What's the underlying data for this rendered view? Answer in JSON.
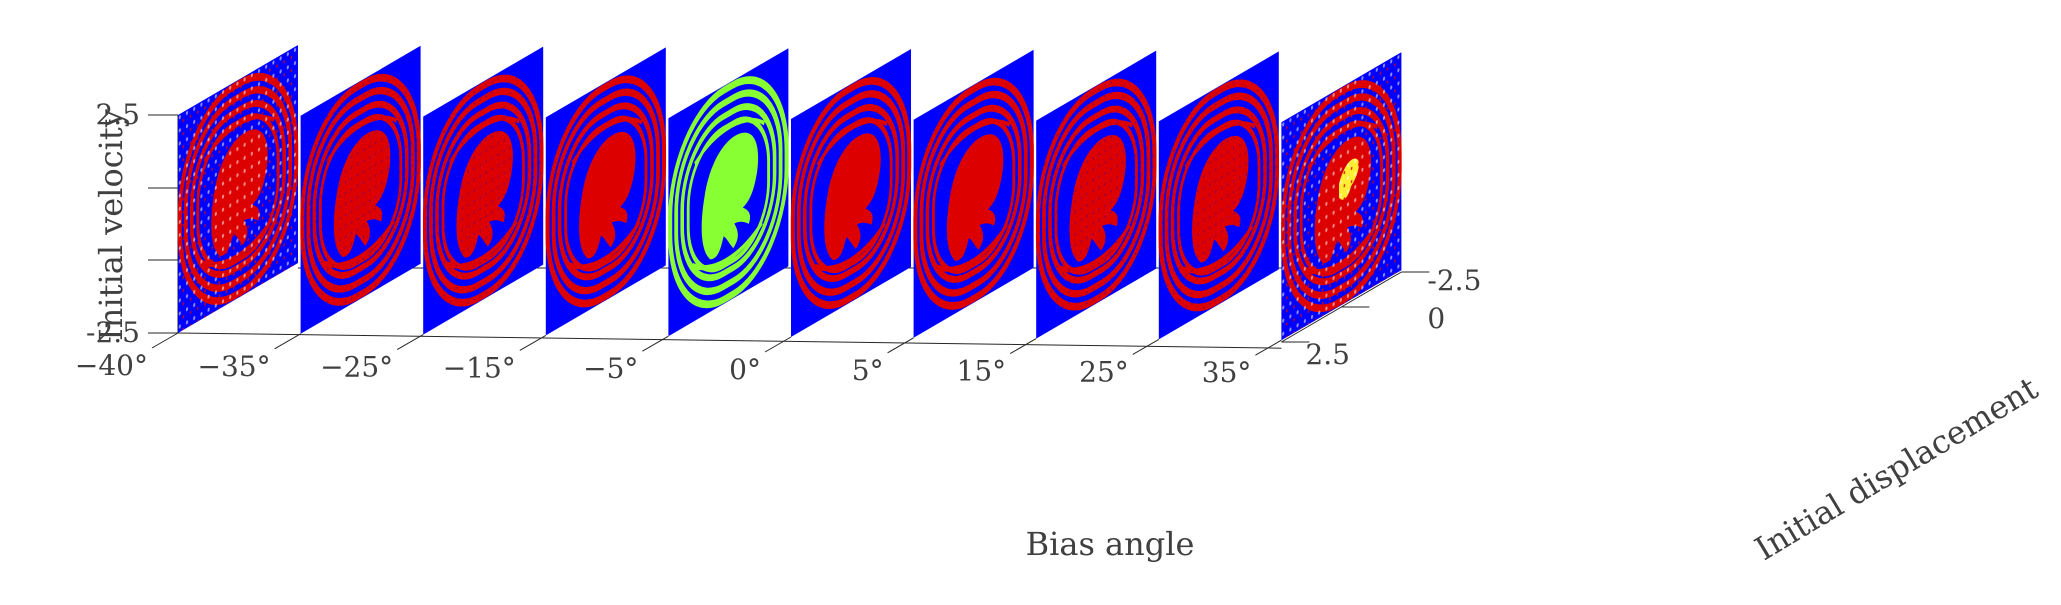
{
  "chart_data": {
    "type": "3d-stacked-basin-slices",
    "x_axis": {
      "label": "Bias angle",
      "tick_labels": [
        "−40°",
        "−35°",
        "−25°",
        "−15°",
        "−5°",
        "0°",
        "5°",
        "15°",
        "25°",
        "35°"
      ]
    },
    "y_axis": {
      "label": "Initial displacement",
      "tick_labels": [
        "-2.5",
        "0",
        "2.5"
      ],
      "ylim": [
        -2.5,
        2.5
      ]
    },
    "z_axis": {
      "label": "Initial velocity",
      "tick_labels": [
        "2.5",
        "-2.5"
      ],
      "zlim": [
        -2.5,
        2.5
      ]
    },
    "slices": [
      {
        "bias_angle": -40,
        "colors": [
          "#0000ff",
          "#dd0000",
          "#ffffff"
        ],
        "texture": "speckled"
      },
      {
        "bias_angle": -35,
        "colors": [
          "#0000ff",
          "#dd0000"
        ],
        "texture": "fine"
      },
      {
        "bias_angle": -25,
        "colors": [
          "#0000ff",
          "#dd0000"
        ],
        "texture": "fine"
      },
      {
        "bias_angle": -15,
        "colors": [
          "#0000ff",
          "#dd0000"
        ],
        "texture": "smooth"
      },
      {
        "bias_angle": -5,
        "colors": [
          "#0000ff",
          "#88ff33"
        ],
        "texture": "smooth"
      },
      {
        "bias_angle": 0,
        "colors": [
          "#0000ff",
          "#dd0000"
        ],
        "texture": "smooth"
      },
      {
        "bias_angle": 5,
        "colors": [
          "#0000ff",
          "#dd0000"
        ],
        "texture": "smooth"
      },
      {
        "bias_angle": 15,
        "colors": [
          "#0000ff",
          "#dd0000"
        ],
        "texture": "fine"
      },
      {
        "bias_angle": 25,
        "colors": [
          "#0000ff",
          "#dd0000"
        ],
        "texture": "fine"
      },
      {
        "bias_angle": 35,
        "colors": [
          "#0000ff",
          "#dd0000",
          "#ffee33",
          "#ffffff"
        ],
        "texture": "speckled"
      }
    ]
  }
}
